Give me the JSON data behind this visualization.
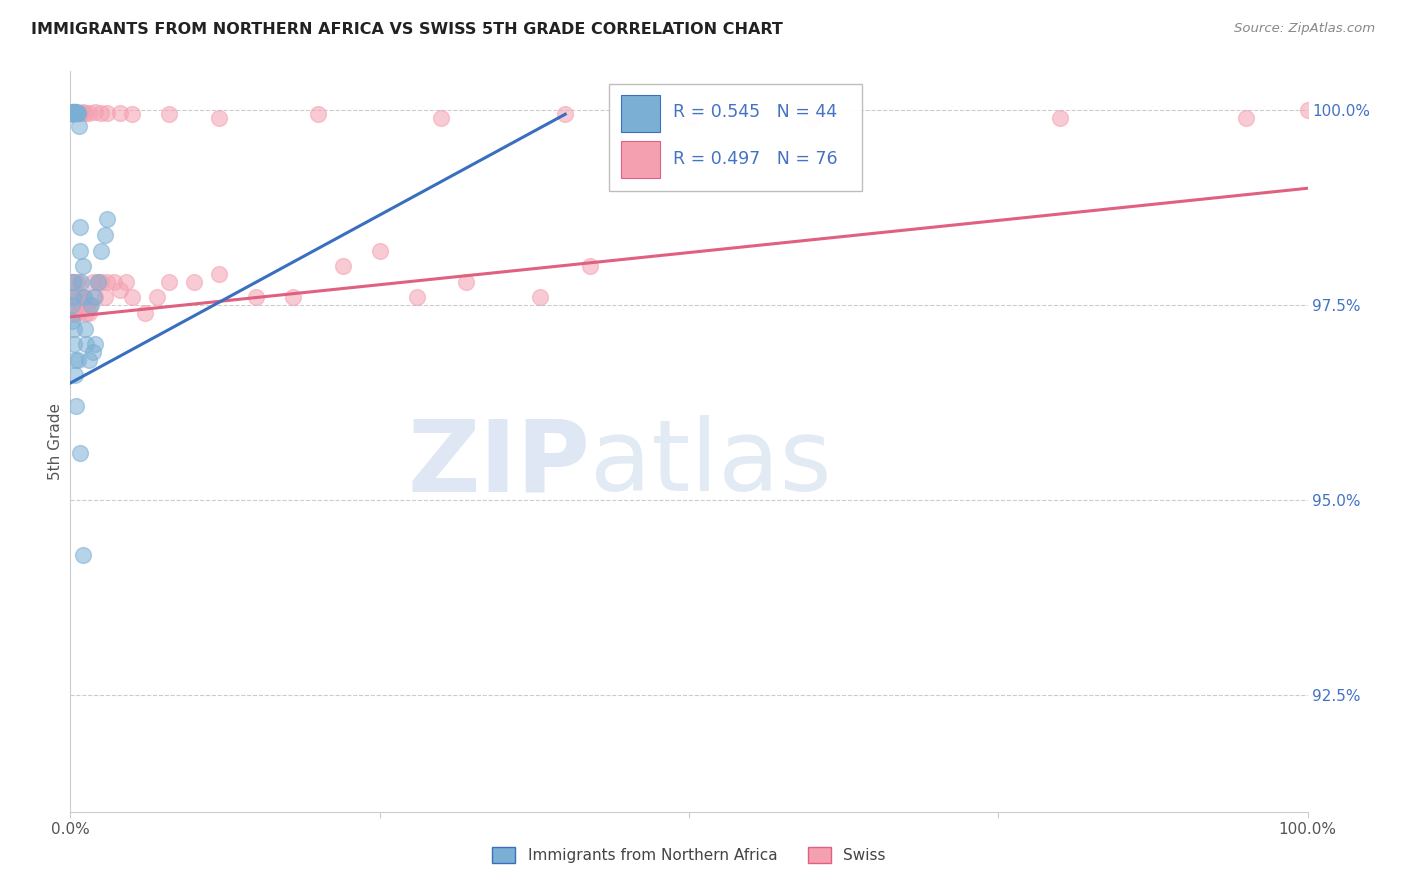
{
  "title": "IMMIGRANTS FROM NORTHERN AFRICA VS SWISS 5TH GRADE CORRELATION CHART",
  "source": "Source: ZipAtlas.com",
  "ylabel": "5th Grade",
  "ylabel_right_ticks": [
    "100.0%",
    "97.5%",
    "95.0%",
    "92.5%"
  ],
  "ylabel_right_values": [
    1.0,
    0.975,
    0.95,
    0.925
  ],
  "legend_label1": "Immigrants from Northern Africa",
  "legend_label2": "Swiss",
  "R1": 0.545,
  "N1": 44,
  "R2": 0.497,
  "N2": 76,
  "color_blue": "#7BAFD4",
  "color_pink": "#F4A0B0",
  "color_blue_line": "#3A6FBF",
  "color_pink_line": "#E06080",
  "color_text_blue": "#4472C4",
  "xlim": [
    0.0,
    1.0
  ],
  "ylim": [
    0.91,
    1.005
  ],
  "grid_color": "#CCCCCC",
  "background_color": "#FFFFFF",
  "blue_x": [
    0.001,
    0.001,
    0.002,
    0.002,
    0.002,
    0.003,
    0.003,
    0.003,
    0.004,
    0.004,
    0.005,
    0.005,
    0.005,
    0.006,
    0.006,
    0.007,
    0.008,
    0.008,
    0.009,
    0.01,
    0.011,
    0.012,
    0.013,
    0.015,
    0.017,
    0.019,
    0.022,
    0.025,
    0.028,
    0.03,
    0.001,
    0.001,
    0.002,
    0.002,
    0.003,
    0.003,
    0.004,
    0.004,
    0.005,
    0.006,
    0.018,
    0.02,
    0.008,
    0.01
  ],
  "blue_y": [
    0.9998,
    0.9995,
    0.9998,
    0.9997,
    0.9996,
    0.9998,
    0.9997,
    0.9996,
    0.9998,
    0.9997,
    0.9998,
    0.9997,
    0.9996,
    0.9997,
    0.9996,
    0.998,
    0.985,
    0.982,
    0.978,
    0.98,
    0.976,
    0.972,
    0.97,
    0.968,
    0.975,
    0.976,
    0.978,
    0.982,
    0.984,
    0.986,
    0.975,
    0.973,
    0.978,
    0.976,
    0.972,
    0.97,
    0.968,
    0.966,
    0.962,
    0.968,
    0.969,
    0.97,
    0.956,
    0.943
  ],
  "pink_x": [
    0.001,
    0.001,
    0.001,
    0.002,
    0.002,
    0.002,
    0.003,
    0.003,
    0.003,
    0.004,
    0.004,
    0.005,
    0.005,
    0.006,
    0.006,
    0.007,
    0.007,
    0.008,
    0.008,
    0.009,
    0.01,
    0.011,
    0.012,
    0.013,
    0.014,
    0.015,
    0.016,
    0.018,
    0.02,
    0.022,
    0.025,
    0.028,
    0.03,
    0.035,
    0.04,
    0.045,
    0.05,
    0.06,
    0.07,
    0.08,
    0.1,
    0.12,
    0.15,
    0.18,
    0.22,
    0.25,
    0.28,
    0.32,
    0.38,
    0.42,
    0.001,
    0.002,
    0.003,
    0.004,
    0.005,
    0.006,
    0.007,
    0.008,
    0.01,
    0.012,
    0.015,
    0.02,
    0.025,
    0.03,
    0.04,
    0.05,
    0.08,
    0.12,
    0.2,
    0.3,
    0.4,
    0.5,
    0.6,
    0.8,
    0.95,
    1.0
  ],
  "pink_y": [
    0.978,
    0.976,
    0.974,
    0.978,
    0.976,
    0.974,
    0.978,
    0.976,
    0.974,
    0.976,
    0.974,
    0.978,
    0.976,
    0.978,
    0.976,
    0.976,
    0.974,
    0.976,
    0.975,
    0.976,
    0.976,
    0.976,
    0.975,
    0.974,
    0.975,
    0.974,
    0.975,
    0.978,
    0.976,
    0.978,
    0.978,
    0.976,
    0.978,
    0.978,
    0.977,
    0.978,
    0.976,
    0.974,
    0.976,
    0.978,
    0.978,
    0.979,
    0.976,
    0.976,
    0.98,
    0.982,
    0.976,
    0.978,
    0.976,
    0.98,
    0.9998,
    0.9998,
    0.9998,
    0.9998,
    0.9998,
    0.9997,
    0.9997,
    0.9996,
    0.9998,
    0.9997,
    0.9996,
    0.9998,
    0.9997,
    0.9996,
    0.9996,
    0.9995,
    0.9995,
    0.999,
    0.9995,
    0.999,
    0.9995,
    0.999,
    0.999,
    0.999,
    0.999,
    1.0
  ]
}
